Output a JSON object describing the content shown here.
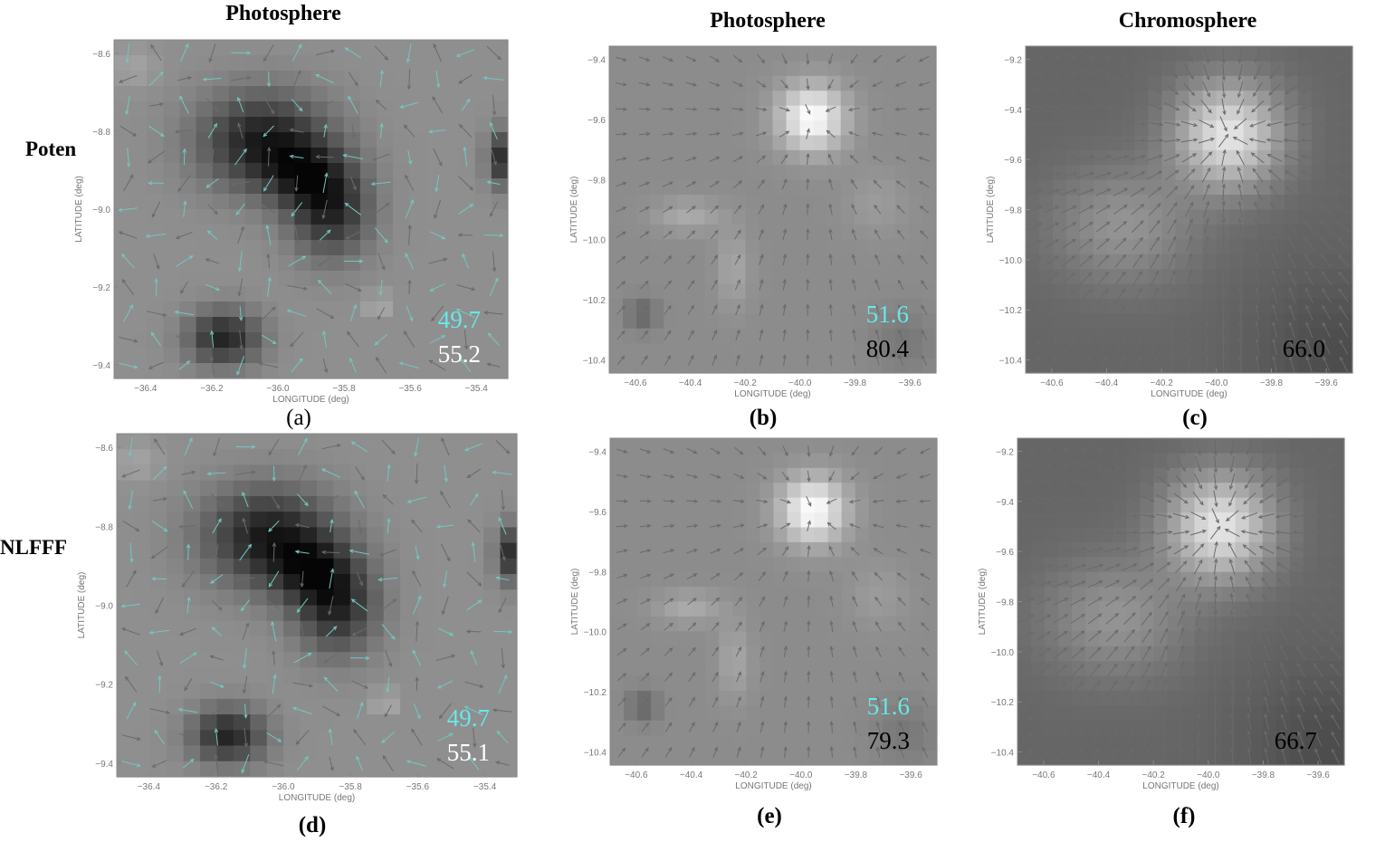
{
  "columns": [
    "Photosphere",
    "Photosphere",
    "Chromosphere"
  ],
  "rows": [
    "Poten",
    "NLFFF"
  ],
  "colors": {
    "cyan": "#66e8e8",
    "white": "#ffffff",
    "black": "#000000",
    "arrow_gray": "#6a6a6a",
    "arrow_cyan": "#74c6c0"
  },
  "panels": [
    {
      "caption": "(a)",
      "caption_bold": false,
      "map": "A",
      "xticks": [
        "−36.4",
        "−36.2",
        "−36.0",
        "−35.8",
        "−35.6",
        "−35.4"
      ],
      "yticks": [
        "−8.6",
        "−8.8",
        "−9.0",
        "−9.2",
        "−9.4"
      ],
      "xlabel": "LONGITUDE (deg)",
      "ylabel": "LATITUDE (deg)",
      "values": [
        {
          "text": "49.7",
          "color": "cyan"
        },
        {
          "text": "55.2",
          "color": "white"
        }
      ]
    },
    {
      "caption": "(b)",
      "caption_bold": true,
      "map": "B",
      "xticks": [
        "−40.6",
        "−40.4",
        "−40.2",
        "−40.0",
        "−39.8",
        "−39.6"
      ],
      "yticks": [
        "−9.4",
        "−9.6",
        "−9.8",
        "−10.0",
        "−10.2",
        "−10.4"
      ],
      "xlabel": "LONGITUDE (deg)",
      "ylabel": "LATITUDE (deg)",
      "values": [
        {
          "text": "51.6",
          "color": "cyan"
        },
        {
          "text": "80.4",
          "color": "black"
        }
      ]
    },
    {
      "caption": "(c)",
      "caption_bold": true,
      "map": "C",
      "xticks": [
        "−40.6",
        "−40.4",
        "−40.2",
        "−40.0",
        "−39.8",
        "−39.6"
      ],
      "yticks": [
        "−9.2",
        "−9.4",
        "−9.6",
        "−9.8",
        "−10.0",
        "−10.2",
        "−10.4"
      ],
      "xlabel": "LONGITUDE (deg)",
      "ylabel": "LATITUDE (deg)",
      "values": [
        {
          "text": "66.0",
          "color": "black"
        }
      ]
    },
    {
      "caption": "(d)",
      "caption_bold": true,
      "map": "A",
      "xticks": [
        "−36.4",
        "−36.2",
        "−36.0",
        "−35.8",
        "−35.6",
        "−35.4"
      ],
      "yticks": [
        "−8.6",
        "−8.8",
        "−9.0",
        "−9.2",
        "−9.4"
      ],
      "xlabel": "LONGITUDE (deg)",
      "ylabel": "LATITUDE (deg)",
      "values": [
        {
          "text": "49.7",
          "color": "cyan"
        },
        {
          "text": "55.1",
          "color": "white"
        }
      ]
    },
    {
      "caption": "(e)",
      "caption_bold": true,
      "map": "B",
      "xticks": [
        "−40.6",
        "−40.4",
        "−40.2",
        "−40.0",
        "−39.8",
        "−39.6"
      ],
      "yticks": [
        "−9.4",
        "−9.6",
        "−9.8",
        "−10.0",
        "−10.2",
        "−10.4"
      ],
      "xlabel": "LONGITUDE (deg)",
      "ylabel": "LATITUDE (deg)",
      "values": [
        {
          "text": "51.6",
          "color": "cyan"
        },
        {
          "text": "79.3",
          "color": "black"
        }
      ]
    },
    {
      "caption": "(f)",
      "caption_bold": true,
      "map": "C",
      "xticks": [
        "−40.6",
        "−40.4",
        "−40.2",
        "−40.0",
        "−39.8",
        "−39.6"
      ],
      "yticks": [
        "−9.2",
        "−9.4",
        "−9.6",
        "−9.8",
        "−10.0",
        "−10.2",
        "−10.4"
      ],
      "xlabel": "LONGITUDE (deg)",
      "ylabel": "LATITUDE (deg)",
      "values": [
        {
          "text": "66.7",
          "color": "black"
        }
      ]
    }
  ]
}
